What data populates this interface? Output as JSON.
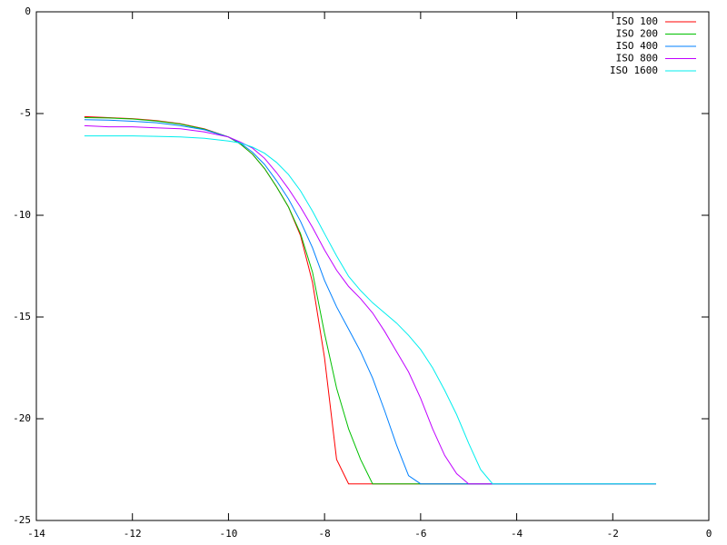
{
  "chart_data": {
    "type": "line",
    "x": [
      -13,
      -12.5,
      -12,
      -11.5,
      -11,
      -10.5,
      -10,
      -9.75,
      -9.5,
      -9.25,
      -9,
      -8.75,
      -8.5,
      -8.25,
      -8,
      -7.75,
      -7.5,
      -7.25,
      -7,
      -6.75,
      -6.5,
      -6.25,
      -6,
      -5.75,
      -5.5,
      -5.25,
      -5,
      -4.75,
      -4.5,
      -4.25,
      -4,
      -3,
      -2,
      -1.1
    ],
    "series": [
      {
        "name": "ISO 100",
        "color": "#ff0000",
        "values": [
          -5.15,
          -5.2,
          -5.25,
          -5.35,
          -5.5,
          -5.75,
          -6.15,
          -6.5,
          -7.0,
          -7.7,
          -8.6,
          -9.6,
          -11.0,
          -13.3,
          -17.0,
          -22.0,
          -23.2,
          -23.2,
          -23.2,
          -23.2,
          -23.2,
          -23.2,
          -23.2,
          -23.2,
          -23.2,
          -23.2,
          -23.2,
          -23.2,
          -23.2,
          -23.2,
          -23.2,
          -23.2,
          -23.2,
          -23.2
        ]
      },
      {
        "name": "ISO 200",
        "color": "#00c000",
        "values": [
          -5.2,
          -5.22,
          -5.27,
          -5.37,
          -5.52,
          -5.77,
          -6.15,
          -6.5,
          -7.0,
          -7.7,
          -8.6,
          -9.6,
          -10.9,
          -12.8,
          -15.8,
          -18.5,
          -20.5,
          -22.0,
          -23.2,
          -23.2,
          -23.2,
          -23.2,
          -23.2,
          -23.2,
          -23.2,
          -23.2,
          -23.2,
          -23.2,
          -23.2,
          -23.2,
          -23.2,
          -23.2,
          -23.2,
          -23.2
        ]
      },
      {
        "name": "ISO 400",
        "color": "#0080ff",
        "values": [
          -5.3,
          -5.32,
          -5.38,
          -5.45,
          -5.6,
          -5.8,
          -6.15,
          -6.45,
          -6.9,
          -7.5,
          -8.3,
          -9.2,
          -10.3,
          -11.6,
          -13.2,
          -14.5,
          -15.6,
          -16.7,
          -18.0,
          -19.6,
          -21.3,
          -22.8,
          -23.2,
          -23.2,
          -23.2,
          -23.2,
          -23.2,
          -23.2,
          -23.2,
          -23.2,
          -23.2,
          -23.2,
          -23.2,
          -23.2
        ]
      },
      {
        "name": "ISO 800",
        "color": "#c000ff",
        "values": [
          -5.6,
          -5.65,
          -5.65,
          -5.7,
          -5.75,
          -5.9,
          -6.15,
          -6.4,
          -6.7,
          -7.2,
          -7.9,
          -8.7,
          -9.6,
          -10.6,
          -11.7,
          -12.7,
          -13.5,
          -14.1,
          -14.8,
          -15.7,
          -16.7,
          -17.7,
          -19.0,
          -20.5,
          -21.8,
          -22.7,
          -23.2,
          -23.2,
          -23.2,
          -23.2,
          -23.2,
          -23.2,
          -23.2,
          -23.2
        ]
      },
      {
        "name": "ISO 1600",
        "color": "#00eeee",
        "values": [
          -6.1,
          -6.1,
          -6.1,
          -6.12,
          -6.15,
          -6.22,
          -6.35,
          -6.45,
          -6.65,
          -6.95,
          -7.4,
          -8.0,
          -8.8,
          -9.8,
          -10.9,
          -12.0,
          -13.0,
          -13.7,
          -14.3,
          -14.8,
          -15.3,
          -15.9,
          -16.6,
          -17.5,
          -18.6,
          -19.8,
          -21.2,
          -22.5,
          -23.2,
          -23.2,
          -23.2,
          -23.2,
          -23.2,
          -23.2
        ]
      }
    ],
    "xlim": [
      -14,
      0
    ],
    "xticks": [
      -14,
      -12,
      -10,
      -8,
      -6,
      -4,
      -2,
      0
    ],
    "ylim": [
      -25,
      0
    ],
    "yticks": [
      -25,
      -20,
      -15,
      -10,
      -5,
      0
    ],
    "legend": "top right"
  }
}
